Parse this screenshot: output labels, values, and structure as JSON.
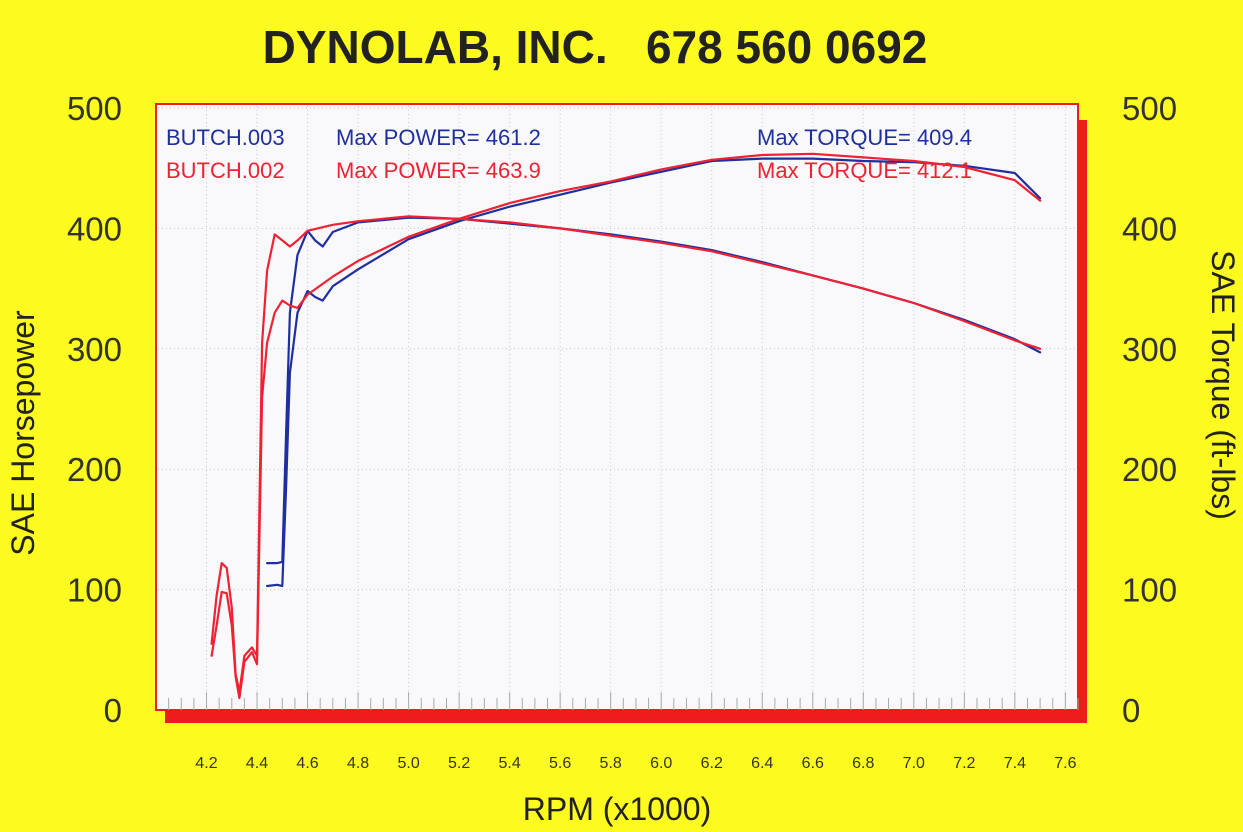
{
  "title": "DYNOLAB, INC.   678 560 0692",
  "chart_data": {
    "type": "line",
    "xlabel": "RPM (x1000)",
    "ylabel_left": "SAE Horsepower",
    "ylabel_right": "SAE Torque (ft-lbs)",
    "xlim": [
      4.0,
      7.65
    ],
    "ylim": [
      0,
      500
    ],
    "x_ticks": [
      "4.2",
      "4.4",
      "4.6",
      "4.8",
      "5.0",
      "5.2",
      "5.4",
      "5.6",
      "5.8",
      "6.0",
      "6.2",
      "6.4",
      "6.6",
      "6.8",
      "7.0",
      "7.2",
      "7.4",
      "7.6"
    ],
    "y_ticks_left": [
      "0",
      "100",
      "200",
      "300",
      "400",
      "500"
    ],
    "y_ticks_right": [
      "0",
      "100",
      "200",
      "300",
      "400",
      "500"
    ],
    "grid": true,
    "colors": {
      "background": "#fdfa1f",
      "plot_bg": "#f9f9fb",
      "frame": "#ee1c1c",
      "blue": "#1f2fa0",
      "red": "#ee2233"
    },
    "legend": [
      {
        "run": "BUTCH.003",
        "power_label": "Max POWER= 461.2",
        "torque_label": "Max TORQUE= 409.4",
        "color": "#1f2fa0"
      },
      {
        "run": "BUTCH.002",
        "power_label": "Max POWER= 463.9",
        "torque_label": "Max TORQUE= 412.1",
        "color": "#ee2233"
      }
    ],
    "series": [
      {
        "run": "BUTCH.003",
        "measure": "power",
        "color": "#1f2fa0",
        "x": [
          4.44,
          4.48,
          4.5,
          4.515,
          4.53,
          4.56,
          4.6,
          4.63,
          4.66,
          4.7,
          4.8,
          5.0,
          5.2,
          5.4,
          5.6,
          5.8,
          6.0,
          6.2,
          6.4,
          6.6,
          6.8,
          7.0,
          7.2,
          7.4,
          7.5
        ],
        "y": [
          103,
          104,
          103,
          185,
          280,
          330,
          348,
          343,
          340,
          352,
          366,
          391,
          406,
          418,
          428,
          438,
          447,
          456,
          458,
          458,
          456,
          455,
          452,
          446,
          425
        ]
      },
      {
        "run": "BUTCH.003",
        "measure": "torque",
        "color": "#1f2fa0",
        "x": [
          4.44,
          4.48,
          4.5,
          4.515,
          4.53,
          4.56,
          4.6,
          4.63,
          4.66,
          4.7,
          4.8,
          5.0,
          5.2,
          5.4,
          5.6,
          5.8,
          6.0,
          6.2,
          6.4,
          6.6,
          6.8,
          7.0,
          7.2,
          7.4,
          7.5
        ],
        "y": [
          122,
          122,
          123,
          230,
          330,
          378,
          398,
          390,
          385,
          397,
          405,
          409,
          408,
          404,
          400,
          395,
          389,
          382,
          372,
          361,
          350,
          338,
          324,
          308,
          297
        ]
      },
      {
        "run": "BUTCH.002",
        "measure": "power",
        "color": "#ee2233",
        "x": [
          4.22,
          4.24,
          4.26,
          4.28,
          4.3,
          4.315,
          4.33,
          4.35,
          4.38,
          4.4,
          4.42,
          4.44,
          4.47,
          4.5,
          4.53,
          4.56,
          4.6,
          4.7,
          4.8,
          5.0,
          5.2,
          5.4,
          5.6,
          5.8,
          6.0,
          6.2,
          6.4,
          6.6,
          6.8,
          7.0,
          7.2,
          7.4,
          7.5
        ],
        "y": [
          45,
          70,
          98,
          97,
          70,
          28,
          10,
          40,
          48,
          38,
          260,
          305,
          330,
          340,
          336,
          334,
          345,
          360,
          373,
          393,
          408,
          421,
          431,
          439,
          449,
          457,
          461,
          462,
          459,
          456,
          451,
          440,
          423
        ]
      },
      {
        "run": "BUTCH.002",
        "measure": "torque",
        "color": "#ee2233",
        "x": [
          4.22,
          4.24,
          4.26,
          4.28,
          4.3,
          4.315,
          4.33,
          4.35,
          4.38,
          4.4,
          4.42,
          4.44,
          4.47,
          4.5,
          4.53,
          4.56,
          4.6,
          4.7,
          4.8,
          5.0,
          5.2,
          5.4,
          5.6,
          5.8,
          6.0,
          6.2,
          6.4,
          6.6,
          6.8,
          7.0,
          7.2,
          7.4,
          7.5
        ],
        "y": [
          55,
          95,
          122,
          118,
          85,
          30,
          15,
          45,
          52,
          45,
          305,
          365,
          395,
          390,
          385,
          390,
          398,
          403,
          406,
          410,
          408,
          405,
          400,
          394,
          388,
          381,
          371,
          361,
          350,
          338,
          323,
          307,
          300
        ]
      }
    ]
  }
}
